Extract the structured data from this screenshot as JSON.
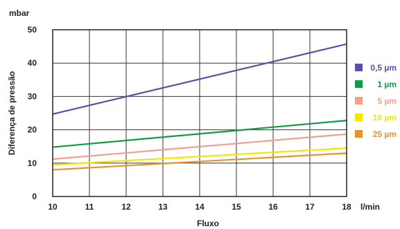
{
  "chart_data": {
    "type": "line",
    "xlabel": "Fluxo",
    "xunit": "l/min",
    "ylabel": "Diferença de pressão",
    "yunit": "mbar",
    "xlim": [
      10,
      18
    ],
    "ylim": [
      0,
      50
    ],
    "xticks": [
      10,
      11,
      12,
      13,
      14,
      15,
      16,
      17,
      18
    ],
    "yticks": [
      0,
      10,
      20,
      30,
      40,
      50
    ],
    "grid": true,
    "legend_position": "right",
    "series": [
      {
        "name": "0,5 µm",
        "color": "#5a4fa6",
        "x": [
          10,
          18
        ],
        "y": [
          24.7,
          45.7
        ]
      },
      {
        "name": "1 µm",
        "color": "#119a47",
        "x": [
          10,
          18
        ],
        "y": [
          14.8,
          22.8
        ]
      },
      {
        "name": "5 µm",
        "color": "#f2a08c",
        "x": [
          10,
          18
        ],
        "y": [
          11.2,
          18.7
        ]
      },
      {
        "name": "10 µm",
        "color": "#f5e600",
        "x": [
          10,
          18
        ],
        "y": [
          9.5,
          14.5
        ]
      },
      {
        "name": "25 µm",
        "color": "#e8912e",
        "x": [
          10,
          18
        ],
        "y": [
          8.0,
          13.0
        ]
      }
    ]
  }
}
